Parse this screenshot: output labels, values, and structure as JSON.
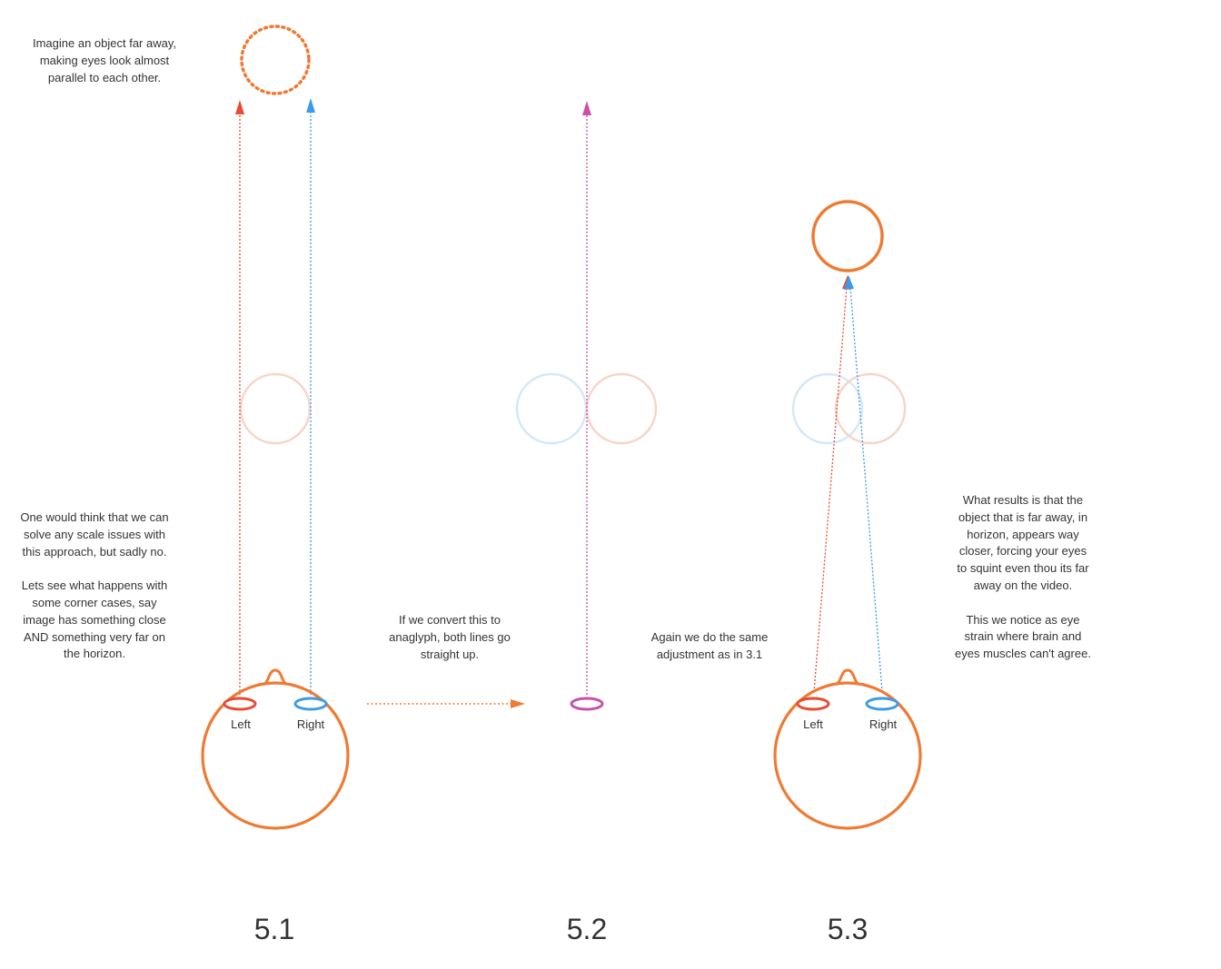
{
  "notes": {
    "far_object": "Imagine an object far away,\nmaking eyes look almost\nparallel to each other.",
    "scale_issue": "One would think that we can\nsolve any scale issues with\nthis approach, but sadly no.\n\nLets see what happens with\nsome corner cases, say\nimage has something close\nAND something very far on\nthe horizon.",
    "anaglyph": "If we convert this to\nanaglyph, both lines go\nstraight up.",
    "adjustment": "Again we do the same\nadjustment as in 3.1",
    "result": "What results is that the\nobject that is far away, in\nhorizon, appears way\ncloser, forcing your eyes\nto squint even thou its far\naway on the video.\n\nThis we notice as eye\nstrain where brain and\neyes muscles can't agree."
  },
  "eyes": {
    "left": "Left",
    "right": "Right"
  },
  "figures": [
    "5.1",
    "5.2",
    "5.3"
  ],
  "colors": {
    "head": "#ef7a33",
    "left_eye": "#ea4a34",
    "right_eye": "#3b9be6",
    "merged_eye": "#cc4fa6",
    "ghost_red": "#f8d4c8",
    "ghost_blue": "#d6e7f7"
  }
}
